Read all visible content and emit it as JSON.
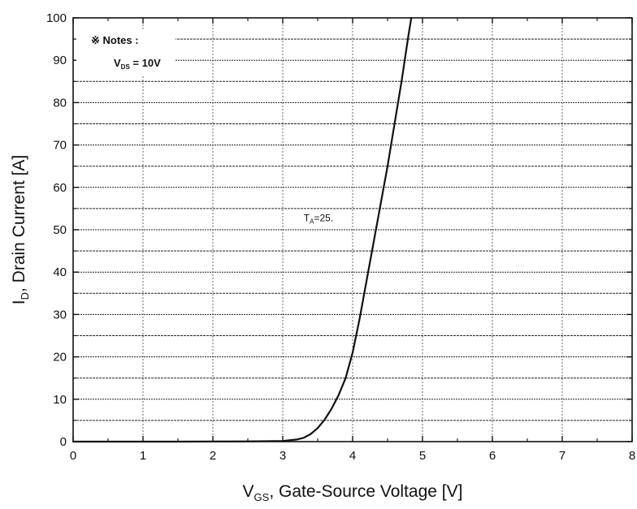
{
  "chart_data": {
    "type": "line",
    "title": "",
    "xlabel": {
      "main": "V",
      "sub": "GS",
      "rest": ", Gate-Source Voltage [V]"
    },
    "ylabel": {
      "main": "I",
      "sub": "D",
      "rest": ", Drain Current [A]"
    },
    "xlim": [
      0,
      8
    ],
    "ylim": [
      0,
      100
    ],
    "x_ticks": [
      0,
      1,
      2,
      3,
      4,
      5,
      6,
      7,
      8
    ],
    "y_ticks": [
      0,
      10,
      20,
      30,
      40,
      50,
      60,
      70,
      80,
      90,
      100
    ],
    "x_tick_labels": [
      "0",
      "1",
      "2",
      "3",
      "4",
      "5",
      "6",
      "7",
      "8"
    ],
    "y_tick_labels": [
      "0",
      "10",
      "20",
      "30",
      "40",
      "50",
      "60",
      "70",
      "80",
      "90",
      "100"
    ],
    "grid": true,
    "notes": {
      "heading": "※ Notes :",
      "line_main": "V",
      "line_sub": "DS",
      "line_rest": " = 10V"
    },
    "annotation": {
      "main": "T",
      "sub": "A",
      "rest": "=25.",
      "x": 3.3,
      "y": 52
    },
    "series": [
      {
        "points": [
          [
            0.0,
            0.0
          ],
          [
            1.5,
            0.0
          ],
          [
            2.5,
            0.05
          ],
          [
            3.0,
            0.15
          ],
          [
            3.2,
            0.5
          ],
          [
            3.3,
            0.9
          ],
          [
            3.4,
            1.8
          ],
          [
            3.5,
            3.2
          ],
          [
            3.6,
            5.2
          ],
          [
            3.7,
            7.8
          ],
          [
            3.8,
            11.0
          ],
          [
            3.9,
            15.0
          ],
          [
            4.0,
            21.0
          ],
          [
            4.1,
            29.0
          ],
          [
            4.2,
            38.0
          ],
          [
            4.3,
            47.0
          ],
          [
            4.4,
            56.0
          ],
          [
            4.5,
            65.0
          ],
          [
            4.6,
            75.0
          ],
          [
            4.7,
            85.0
          ],
          [
            4.8,
            96.0
          ],
          [
            4.84,
            100.0
          ]
        ]
      }
    ]
  }
}
